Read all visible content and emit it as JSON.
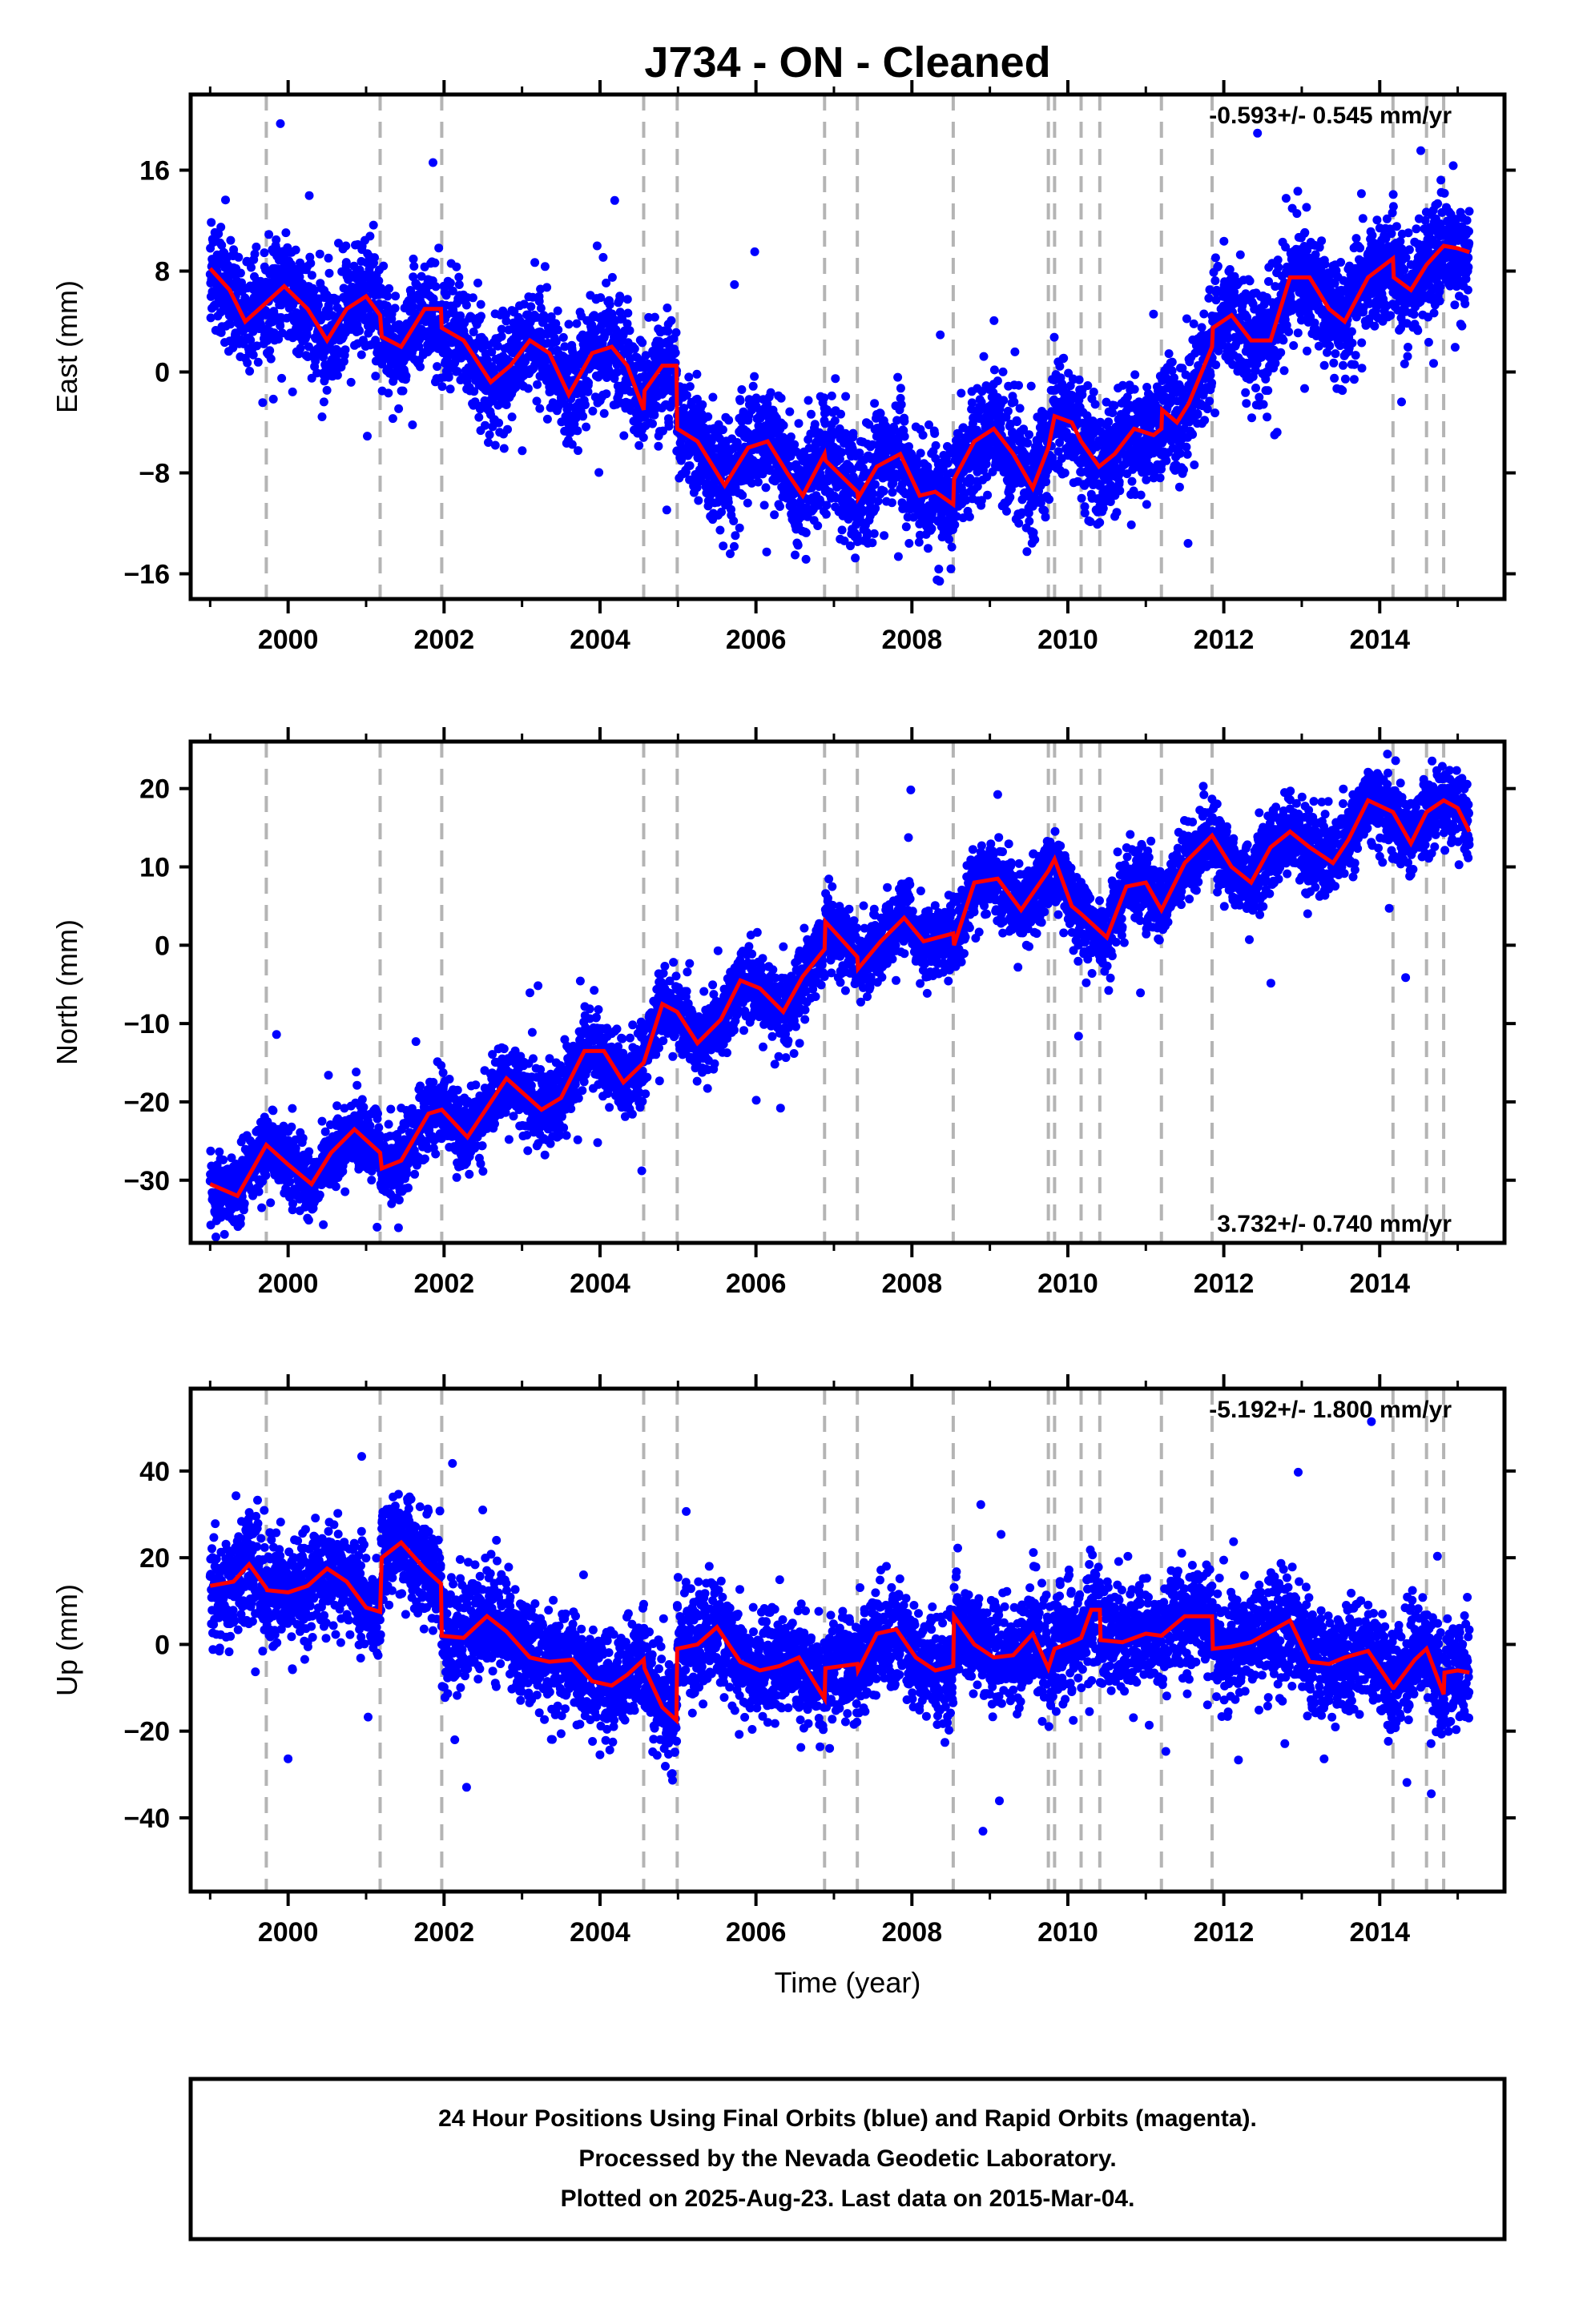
{
  "title": "J734  - ON - Cleaned",
  "xlabel": "Time (year)",
  "footer": {
    "line1": "24 Hour Positions Using Final Orbits (blue) and Rapid Orbits (magenta).",
    "line2": "Processed by the Nevada Geodetic Laboratory.",
    "line3": "Plotted on 2025-Aug-23. Last data on 2015-Mar-04."
  },
  "colors": {
    "points": "#0000ff",
    "model": "#ff0000",
    "events": "#b4b4b4"
  },
  "chart_data": [
    {
      "type": "scatter",
      "component": "east",
      "ylabel": "East (mm)",
      "rate_label": "-0.593+/- 0.545 mm/yr",
      "xlim": [
        1998.75,
        2015.6
      ],
      "ylim": [
        -18,
        22
      ],
      "yticks": [
        -16,
        -8,
        0,
        8,
        16
      ],
      "xticks": [
        2000,
        2002,
        2004,
        2006,
        2008,
        2010,
        2012,
        2014
      ],
      "event_lines": [
        1999.72,
        2001.18,
        2001.97,
        2004.56,
        2004.99,
        2006.88,
        2007.3,
        2008.53,
        2009.75,
        2009.83,
        2010.17,
        2010.41,
        2011.2,
        2011.85,
        2014.17,
        2014.6,
        2014.82
      ],
      "model": {
        "x": [
          1999.0,
          1999.25,
          1999.45,
          1999.72,
          1999.95,
          2000.25,
          2000.5,
          2000.75,
          2001.0,
          2001.18,
          2001.2,
          2001.45,
          2001.75,
          2001.96,
          2001.97,
          2002.25,
          2002.6,
          2002.85,
          2003.1,
          2003.35,
          2003.6,
          2003.9,
          2004.15,
          2004.35,
          2004.56,
          2004.57,
          2004.8,
          2004.98,
          2004.99,
          2005.25,
          2005.6,
          2005.9,
          2006.15,
          2006.4,
          2006.6,
          2006.88,
          2006.89,
          2007.3,
          2007.31,
          2007.55,
          2007.85,
          2008.1,
          2008.3,
          2008.53,
          2008.54,
          2008.8,
          2009.05,
          2009.3,
          2009.55,
          2009.75,
          2009.83,
          2010.05,
          2010.17,
          2010.4,
          2010.6,
          2010.85,
          2011.1,
          2011.2,
          2011.21,
          2011.4,
          2011.55,
          2011.85,
          2011.86,
          2012.1,
          2012.35,
          2012.6,
          2012.85,
          2013.1,
          2013.35,
          2013.55,
          2013.85,
          2014.17,
          2014.18,
          2014.4,
          2014.6,
          2014.82,
          2015.0,
          2015.15
        ],
        "y": [
          8.2,
          6.5,
          4.0,
          5.5,
          6.8,
          5.0,
          2.5,
          5.0,
          6.0,
          4.5,
          2.8,
          2.0,
          5.0,
          5.0,
          3.5,
          2.5,
          -0.8,
          0.5,
          2.5,
          1.5,
          -1.8,
          1.5,
          2.0,
          0.5,
          -3.0,
          -1.5,
          0.5,
          0.5,
          -4.5,
          -5.5,
          -9.0,
          -6.0,
          -5.5,
          -8.0,
          -9.8,
          -6.5,
          -7.0,
          -9.5,
          -10.0,
          -7.5,
          -6.5,
          -9.8,
          -9.5,
          -10.5,
          -8.5,
          -5.5,
          -4.5,
          -6.5,
          -9.2,
          -6.0,
          -3.5,
          -4.0,
          -5.5,
          -7.5,
          -6.5,
          -4.5,
          -5.0,
          -4.5,
          -3.0,
          -4.0,
          -2.5,
          2.0,
          3.5,
          4.5,
          2.5,
          2.5,
          7.5,
          7.5,
          5.0,
          4.0,
          7.5,
          9.0,
          7.5,
          6.5,
          8.5,
          10.0,
          9.8,
          9.5
        ]
      }
    },
    {
      "type": "scatter",
      "component": "north",
      "ylabel": "North (mm)",
      "rate_label": "3.732+/- 0.740 mm/yr",
      "xlim": [
        1998.75,
        2015.6
      ],
      "ylim": [
        -38,
        26
      ],
      "yticks": [
        -30,
        -20,
        -10,
        0,
        10,
        20
      ],
      "xticks": [
        2000,
        2002,
        2004,
        2006,
        2008,
        2010,
        2012,
        2014
      ],
      "event_lines": [
        1999.72,
        2001.18,
        2001.97,
        2004.56,
        2004.99,
        2006.88,
        2007.3,
        2008.53,
        2009.75,
        2009.83,
        2010.17,
        2010.41,
        2011.2,
        2011.85,
        2014.17,
        2014.6,
        2014.82
      ],
      "model": {
        "x": [
          1999.0,
          1999.35,
          1999.72,
          2000.0,
          2000.3,
          2000.55,
          2000.85,
          2001.18,
          2001.2,
          2001.45,
          2001.8,
          2001.97,
          2002.3,
          2002.8,
          2003.25,
          2003.5,
          2003.8,
          2004.05,
          2004.3,
          2004.56,
          2004.8,
          2004.99,
          2005.25,
          2005.55,
          2005.8,
          2006.05,
          2006.35,
          2006.6,
          2006.88,
          2006.89,
          2007.3,
          2007.31,
          2007.6,
          2007.9,
          2008.15,
          2008.53,
          2008.54,
          2008.8,
          2009.1,
          2009.4,
          2009.75,
          2009.83,
          2010.05,
          2010.17,
          2010.5,
          2010.75,
          2011.0,
          2011.2,
          2011.5,
          2011.85,
          2012.1,
          2012.35,
          2012.6,
          2012.85,
          2013.1,
          2013.4,
          2013.6,
          2013.85,
          2014.17,
          2014.4,
          2014.6,
          2014.82,
          2015.0,
          2015.15
        ],
        "y": [
          -30.5,
          -32.0,
          -25.5,
          -28.0,
          -30.5,
          -26.5,
          -23.5,
          -26.5,
          -28.5,
          -27.5,
          -21.5,
          -21.0,
          -24.5,
          -17.0,
          -21.0,
          -19.5,
          -13.5,
          -13.5,
          -17.5,
          -15.0,
          -7.5,
          -8.5,
          -12.5,
          -9.5,
          -4.5,
          -5.5,
          -8.5,
          -4.0,
          -0.5,
          3.0,
          -1.5,
          -3.0,
          0.5,
          3.5,
          0.5,
          1.5,
          0.0,
          8.0,
          8.5,
          4.5,
          9.5,
          11.0,
          5.0,
          4.0,
          1.0,
          7.5,
          8.0,
          4.5,
          10.5,
          14.0,
          10.0,
          8.0,
          12.5,
          14.5,
          12.5,
          10.5,
          13.5,
          18.5,
          17.0,
          13.0,
          17.0,
          18.5,
          17.5,
          14.5
        ]
      }
    },
    {
      "type": "scatter",
      "component": "up",
      "ylabel": "Up (mm)",
      "rate_label": "-5.192+/- 1.800 mm/yr",
      "xlim": [
        1998.75,
        2015.6
      ],
      "ylim": [
        -57,
        59
      ],
      "yticks": [
        -40,
        -20,
        0,
        20,
        40
      ],
      "xticks": [
        2000,
        2002,
        2004,
        2006,
        2008,
        2010,
        2012,
        2014
      ],
      "event_lines": [
        1999.72,
        2001.18,
        2001.97,
        2004.56,
        2004.99,
        2006.88,
        2007.3,
        2008.53,
        2009.75,
        2009.83,
        2010.17,
        2010.41,
        2011.2,
        2011.85,
        2014.17,
        2014.6,
        2014.82
      ],
      "model": {
        "x": [
          1999.0,
          1999.3,
          1999.5,
          1999.72,
          1999.73,
          2000.0,
          2000.25,
          2000.5,
          2000.75,
          2001.0,
          2001.18,
          2001.2,
          2001.45,
          2001.75,
          2001.96,
          2001.97,
          2002.25,
          2002.55,
          2002.8,
          2003.1,
          2003.35,
          2003.65,
          2003.9,
          2004.15,
          2004.35,
          2004.56,
          2004.57,
          2004.8,
          2004.98,
          2004.99,
          2005.25,
          2005.5,
          2005.8,
          2006.05,
          2006.3,
          2006.55,
          2006.88,
          2006.89,
          2007.3,
          2007.31,
          2007.55,
          2007.8,
          2008.05,
          2008.3,
          2008.53,
          2008.54,
          2008.8,
          2009.05,
          2009.3,
          2009.55,
          2009.75,
          2009.83,
          2010.05,
          2010.17,
          2010.3,
          2010.41,
          2010.42,
          2010.7,
          2011.0,
          2011.2,
          2011.5,
          2011.85,
          2011.86,
          2012.1,
          2012.35,
          2012.55,
          2012.85,
          2013.1,
          2013.35,
          2013.55,
          2013.85,
          2014.17,
          2014.18,
          2014.45,
          2014.6,
          2014.82,
          2014.83,
          2015.0,
          2015.15
        ],
        "y": [
          13.5,
          14.5,
          18.5,
          13.0,
          12.5,
          12.0,
          13.5,
          17.5,
          14.5,
          8.5,
          7.5,
          20.0,
          23.5,
          17.5,
          14.0,
          2.0,
          1.5,
          6.5,
          3.0,
          -3.0,
          -4.0,
          -3.5,
          -8.5,
          -9.5,
          -7.0,
          -3.5,
          -5.5,
          -14.5,
          -17.5,
          -1.0,
          0.0,
          4.0,
          -4.0,
          -6.0,
          -5.0,
          -3.0,
          -12.5,
          -5.5,
          -4.5,
          -6.0,
          2.5,
          3.5,
          -3.0,
          -6.0,
          -5.0,
          6.5,
          0.0,
          -3.0,
          -2.5,
          2.5,
          -5.5,
          -1.0,
          0.5,
          1.5,
          8.0,
          8.0,
          1.0,
          0.5,
          2.5,
          2.0,
          6.5,
          6.5,
          -1.0,
          -0.5,
          0.5,
          2.5,
          5.5,
          -4.0,
          -4.5,
          -3.0,
          -1.5,
          -10.0,
          -10.0,
          -3.5,
          -1.0,
          -11.5,
          -6.5,
          -6.0,
          -6.5
        ]
      }
    }
  ]
}
